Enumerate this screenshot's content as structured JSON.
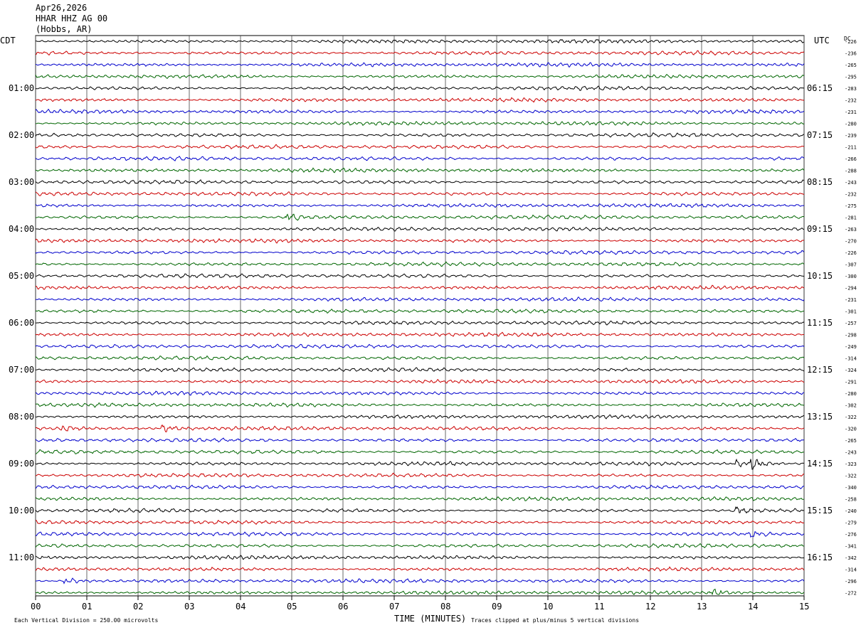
{
  "header": {
    "date": "Apr26,2026",
    "station": "HHAR HHZ AG 00",
    "location": "(Hobbs, AR)"
  },
  "labels": {
    "left_tz": "CDT",
    "right_tz": "UTC",
    "dc_header": "DC",
    "xlabel": "TIME (MINUTES)",
    "footer_left": "Each Vertical Division =  250.00 microvolts",
    "footer_right": "Traces clipped at plus/minus 5 vertical divisions"
  },
  "colors": {
    "trace_cycle": [
      "#000000",
      "#cc0000",
      "#0000cc",
      "#006600"
    ],
    "grid": "#000000",
    "background": "#ffffff"
  },
  "chart_data": {
    "type": "line",
    "description_kind": "helicorder",
    "x": {
      "label": "TIME (MINUTES)",
      "range": [
        0,
        15
      ],
      "ticks": [
        "00",
        "01",
        "02",
        "03",
        "04",
        "05",
        "06",
        "07",
        "08",
        "09",
        "10",
        "11",
        "12",
        "13",
        "14",
        "15"
      ]
    },
    "left_hour_labels": [
      "01:00",
      "02:00",
      "03:00",
      "04:00",
      "05:00",
      "06:00",
      "07:00",
      "08:00",
      "09:00",
      "10:00",
      "11:00"
    ],
    "right_hour_labels": [
      "06:15",
      "07:15",
      "08:15",
      "09:15",
      "10:15",
      "11:15",
      "12:15",
      "13:15",
      "14:15",
      "15:15",
      "16:15"
    ],
    "dc_offsets": [
      -226,
      -236,
      -265,
      -295,
      -283,
      -232,
      -231,
      -280,
      -239,
      -211,
      -266,
      -288,
      -243,
      -232,
      -275,
      -281,
      -263,
      -270,
      -226,
      -307,
      -300,
      -294,
      -231,
      -301,
      -257,
      -298,
      -249,
      -314,
      -324,
      -291,
      -280,
      -302,
      -322,
      -320,
      -265,
      -243,
      -323,
      -322,
      -340,
      -258,
      -240,
      -279,
      -276,
      -341,
      -342,
      -314,
      -296,
      -272
    ],
    "trace_count": 48,
    "minutes_per_trace": 15,
    "events": [
      {
        "trace": 15,
        "minute": 4.9,
        "amplitude": 2.2
      },
      {
        "trace": 33,
        "minute": 2.5,
        "amplitude": 1.6
      },
      {
        "trace": 33,
        "minute": 0.5,
        "amplitude": 1.4
      },
      {
        "trace": 36,
        "minute": 14.0,
        "amplitude": 3.0
      },
      {
        "trace": 36,
        "minute": 13.7,
        "amplitude": 1.6
      },
      {
        "trace": 40,
        "minute": 13.7,
        "amplitude": 1.8
      },
      {
        "trace": 46,
        "minute": 0.6,
        "amplitude": 1.8
      },
      {
        "trace": 47,
        "minute": 13.2,
        "amplitude": 1.6
      },
      {
        "trace": 42,
        "minute": 14.0,
        "amplitude": 1.5
      }
    ]
  }
}
